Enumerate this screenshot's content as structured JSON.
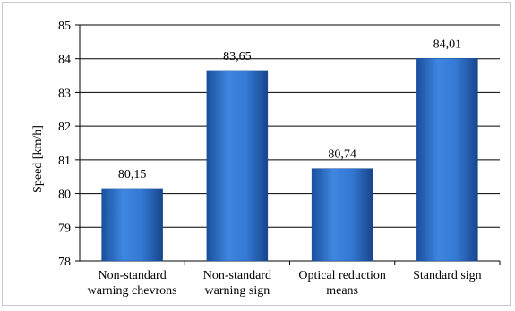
{
  "chart_data": {
    "type": "bar",
    "categories": [
      [
        "Non-standard",
        "warning chevrons"
      ],
      [
        "Non-standard",
        "warning sign"
      ],
      [
        "Optical reduction",
        "means"
      ],
      [
        "Standard sign"
      ]
    ],
    "values": [
      80.15,
      83.65,
      80.74,
      84.01
    ],
    "value_labels": [
      "80,15",
      "83,65",
      "80,74",
      "84,01"
    ],
    "ylabel": "Speed [km/h]",
    "ylim": [
      78,
      85
    ],
    "yticks": [
      78,
      79,
      80,
      81,
      82,
      83,
      84,
      85
    ],
    "grid": true,
    "bar_color": "#2a6fc9"
  }
}
